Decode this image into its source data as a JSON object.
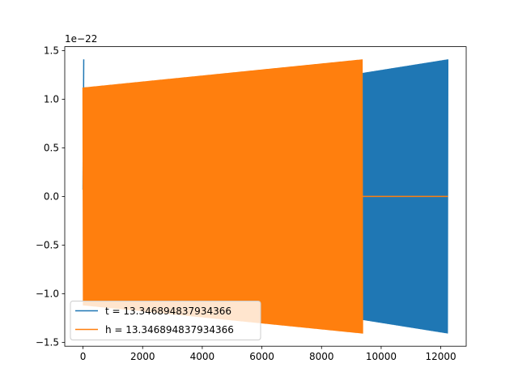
{
  "chart_data": {
    "type": "line",
    "title": "",
    "xlabel": "",
    "ylabel": "",
    "offset_label": "1e−22",
    "xlim": [
      -612,
      12852
    ],
    "ylim": [
      -1.54,
      1.54
    ],
    "x_ticks": [
      0,
      2000,
      4000,
      6000,
      8000,
      10000,
      12000
    ],
    "x_tick_labels": [
      "0",
      "2000",
      "4000",
      "6000",
      "8000",
      "10000",
      "12000"
    ],
    "y_ticks": [
      -1.5,
      -1.0,
      -0.5,
      0.0,
      0.5,
      1.0,
      1.5
    ],
    "y_tick_labels": [
      "−1.5",
      "−1.0",
      "−0.5",
      "0.0",
      "0.5",
      "1.0",
      "1.5"
    ],
    "grid": false,
    "legend_position": "lower-left",
    "series": [
      {
        "name": "t = 13.346894837934366",
        "color": "#1f77b4",
        "envelope_x": [
          0,
          9375,
          12240
        ],
        "envelope_amp": [
          1.12,
          1.27,
          1.41
        ],
        "x_end": 12240,
        "initial_spike": {
          "x": [
            0,
            25
          ],
          "y": [
            0.07,
            1.41
          ]
        }
      },
      {
        "name": "h = 13.346894837934366",
        "color": "#ff7f0e",
        "envelope_x": [
          0,
          9375
        ],
        "envelope_amp": [
          1.12,
          1.41
        ],
        "x_end": 9375,
        "zero_tail": {
          "x": [
            9375,
            12240
          ],
          "y": 0.0
        }
      }
    ]
  }
}
